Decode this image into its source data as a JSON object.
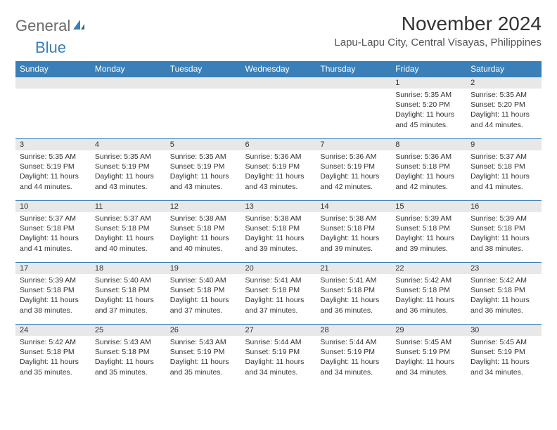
{
  "logo": {
    "text1": "General",
    "text2": "Blue"
  },
  "title": "November 2024",
  "location": "Lapu-Lapu City, Central Visayas, Philippines",
  "colors": {
    "header_bg": "#3a7fb8",
    "header_text": "#ffffff",
    "daynum_bg": "#e8e8e8",
    "border": "#3a7fb8",
    "text": "#333333",
    "logo_gray": "#6b6b6b",
    "logo_blue": "#3a7fb8",
    "background": "#ffffff"
  },
  "weekdays": [
    "Sunday",
    "Monday",
    "Tuesday",
    "Wednesday",
    "Thursday",
    "Friday",
    "Saturday"
  ],
  "weeks": [
    [
      {
        "empty": true
      },
      {
        "empty": true
      },
      {
        "empty": true
      },
      {
        "empty": true
      },
      {
        "empty": true
      },
      {
        "day": "1",
        "sunrise": "5:35 AM",
        "sunset": "5:20 PM",
        "daylight": "11 hours and 45 minutes."
      },
      {
        "day": "2",
        "sunrise": "5:35 AM",
        "sunset": "5:20 PM",
        "daylight": "11 hours and 44 minutes."
      }
    ],
    [
      {
        "day": "3",
        "sunrise": "5:35 AM",
        "sunset": "5:19 PM",
        "daylight": "11 hours and 44 minutes."
      },
      {
        "day": "4",
        "sunrise": "5:35 AM",
        "sunset": "5:19 PM",
        "daylight": "11 hours and 43 minutes."
      },
      {
        "day": "5",
        "sunrise": "5:35 AM",
        "sunset": "5:19 PM",
        "daylight": "11 hours and 43 minutes."
      },
      {
        "day": "6",
        "sunrise": "5:36 AM",
        "sunset": "5:19 PM",
        "daylight": "11 hours and 43 minutes."
      },
      {
        "day": "7",
        "sunrise": "5:36 AM",
        "sunset": "5:19 PM",
        "daylight": "11 hours and 42 minutes."
      },
      {
        "day": "8",
        "sunrise": "5:36 AM",
        "sunset": "5:18 PM",
        "daylight": "11 hours and 42 minutes."
      },
      {
        "day": "9",
        "sunrise": "5:37 AM",
        "sunset": "5:18 PM",
        "daylight": "11 hours and 41 minutes."
      }
    ],
    [
      {
        "day": "10",
        "sunrise": "5:37 AM",
        "sunset": "5:18 PM",
        "daylight": "11 hours and 41 minutes."
      },
      {
        "day": "11",
        "sunrise": "5:37 AM",
        "sunset": "5:18 PM",
        "daylight": "11 hours and 40 minutes."
      },
      {
        "day": "12",
        "sunrise": "5:38 AM",
        "sunset": "5:18 PM",
        "daylight": "11 hours and 40 minutes."
      },
      {
        "day": "13",
        "sunrise": "5:38 AM",
        "sunset": "5:18 PM",
        "daylight": "11 hours and 39 minutes."
      },
      {
        "day": "14",
        "sunrise": "5:38 AM",
        "sunset": "5:18 PM",
        "daylight": "11 hours and 39 minutes."
      },
      {
        "day": "15",
        "sunrise": "5:39 AM",
        "sunset": "5:18 PM",
        "daylight": "11 hours and 39 minutes."
      },
      {
        "day": "16",
        "sunrise": "5:39 AM",
        "sunset": "5:18 PM",
        "daylight": "11 hours and 38 minutes."
      }
    ],
    [
      {
        "day": "17",
        "sunrise": "5:39 AM",
        "sunset": "5:18 PM",
        "daylight": "11 hours and 38 minutes."
      },
      {
        "day": "18",
        "sunrise": "5:40 AM",
        "sunset": "5:18 PM",
        "daylight": "11 hours and 37 minutes."
      },
      {
        "day": "19",
        "sunrise": "5:40 AM",
        "sunset": "5:18 PM",
        "daylight": "11 hours and 37 minutes."
      },
      {
        "day": "20",
        "sunrise": "5:41 AM",
        "sunset": "5:18 PM",
        "daylight": "11 hours and 37 minutes."
      },
      {
        "day": "21",
        "sunrise": "5:41 AM",
        "sunset": "5:18 PM",
        "daylight": "11 hours and 36 minutes."
      },
      {
        "day": "22",
        "sunrise": "5:42 AM",
        "sunset": "5:18 PM",
        "daylight": "11 hours and 36 minutes."
      },
      {
        "day": "23",
        "sunrise": "5:42 AM",
        "sunset": "5:18 PM",
        "daylight": "11 hours and 36 minutes."
      }
    ],
    [
      {
        "day": "24",
        "sunrise": "5:42 AM",
        "sunset": "5:18 PM",
        "daylight": "11 hours and 35 minutes."
      },
      {
        "day": "25",
        "sunrise": "5:43 AM",
        "sunset": "5:18 PM",
        "daylight": "11 hours and 35 minutes."
      },
      {
        "day": "26",
        "sunrise": "5:43 AM",
        "sunset": "5:19 PM",
        "daylight": "11 hours and 35 minutes."
      },
      {
        "day": "27",
        "sunrise": "5:44 AM",
        "sunset": "5:19 PM",
        "daylight": "11 hours and 34 minutes."
      },
      {
        "day": "28",
        "sunrise": "5:44 AM",
        "sunset": "5:19 PM",
        "daylight": "11 hours and 34 minutes."
      },
      {
        "day": "29",
        "sunrise": "5:45 AM",
        "sunset": "5:19 PM",
        "daylight": "11 hours and 34 minutes."
      },
      {
        "day": "30",
        "sunrise": "5:45 AM",
        "sunset": "5:19 PM",
        "daylight": "11 hours and 34 minutes."
      }
    ]
  ],
  "labels": {
    "sunrise": "Sunrise:",
    "sunset": "Sunset:",
    "daylight": "Daylight:"
  }
}
